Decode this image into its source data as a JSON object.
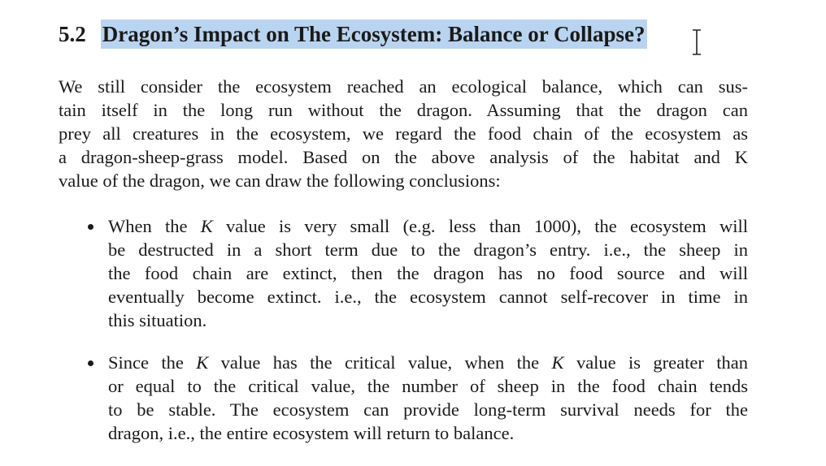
{
  "section": {
    "number": "5.2",
    "title": "Dragon’s Impact on The Ecosystem: Balance or Collapse?"
  },
  "paragraph": {
    "lines": [
      "We still consider the ecosystem reached an ecological balance, which can sus-",
      "tain itself in the long run without the dragon. Assuming that the dragon can",
      "prey all creatures in the ecosystem, we regard the food chain of the ecosystem as",
      "a dragon-sheep-grass model. Based on the above analysis of the habitat and K",
      "value of the dragon, we can draw the following conclusions:"
    ]
  },
  "bullets": [
    {
      "lines": [
        [
          "When the ",
          "K",
          " value is very small (e.g. less than 1000), the ecosystem will"
        ],
        [
          "be destructed in a short term due to the dragon’s entry. i.e., the sheep in"
        ],
        [
          "the food chain are extinct, then the dragon has no food source and will"
        ],
        [
          "eventually become extinct. i.e., the ecosystem cannot self-recover in time in"
        ],
        [
          "this situation."
        ]
      ]
    },
    {
      "lines": [
        [
          "Since the ",
          "K",
          " value has the critical value, when the ",
          "K",
          " value is greater than"
        ],
        [
          "or equal to the critical value, the number of sheep in the food chain tends"
        ],
        [
          "to be stable. The ecosystem can provide long-term survival needs for the"
        ],
        [
          "dragon, i.e., the entire ecosystem will return to balance."
        ]
      ]
    }
  ]
}
